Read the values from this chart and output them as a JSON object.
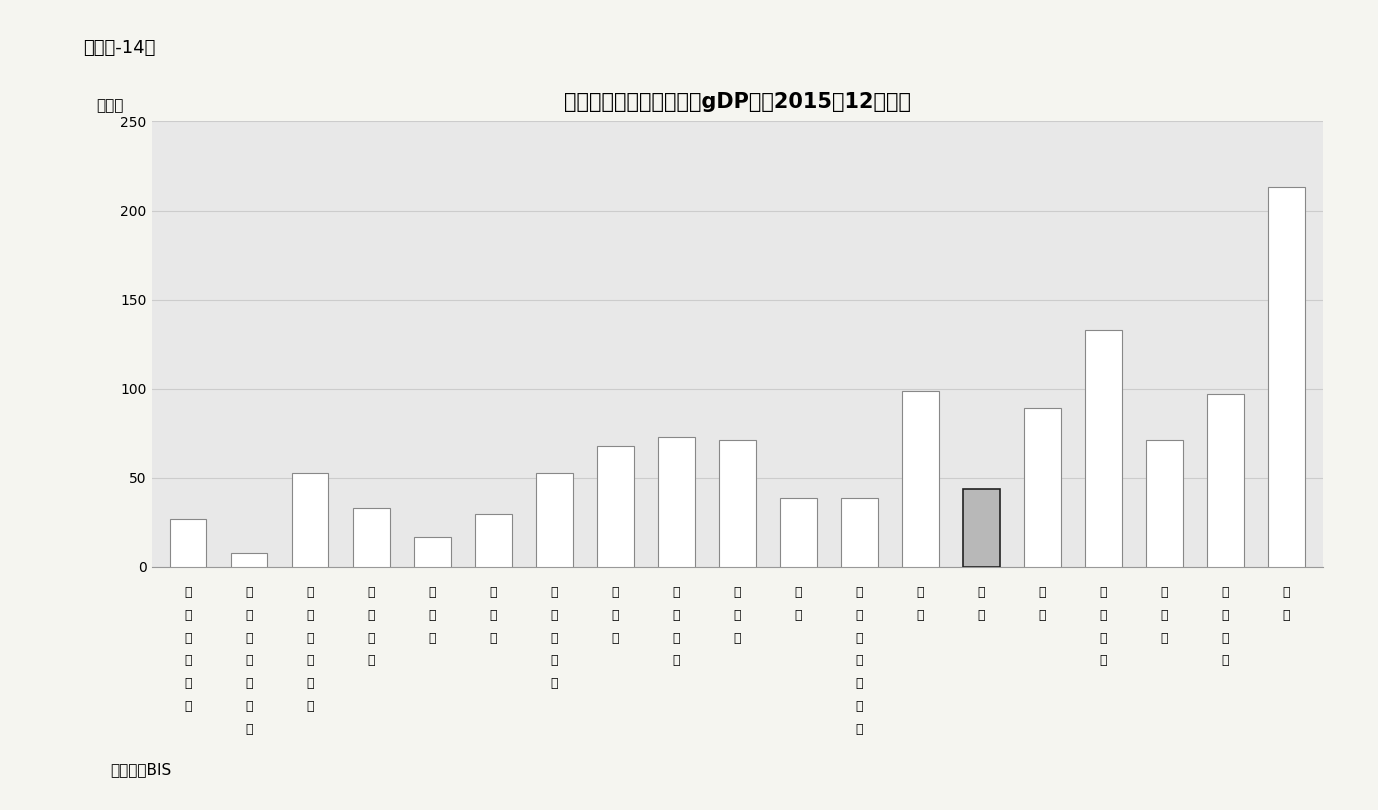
{
  "title": "一般政府の債務残高（対gDP比、2015年12月末）",
  "ylabel": "（％）",
  "caption": "（資料）BIS",
  "header_label": "（図表-14）",
  "tick_labels": [
    "イン\nド\nネ\nシ\nア",
    "サウ\nジ\nア\nラ\nビ\nア",
    "アル\nゼ\nン\nチ\nン",
    "メキ\nシ\nコ",
    "ロシ\nア",
    "トル\nコ",
    "南ア\nフ\nリ\nカ",
    "イン\nド",
    "ブラ\nジ\nル",
    "ドイ\nツ",
    "韓国",
    "オー\nス\nト\nラ\nリ\nア",
    "米国",
    "中国",
    "英国",
    "イタ\nリ\nア",
    "カナ\nダ",
    "フラ\nン\nス",
    "日本"
  ],
  "values": [
    27,
    8,
    53,
    33,
    17,
    30,
    53,
    68,
    73,
    71,
    39,
    39,
    99,
    44,
    89,
    133,
    71,
    97,
    213
  ],
  "bar_colors": [
    "#ffffff",
    "#ffffff",
    "#ffffff",
    "#ffffff",
    "#ffffff",
    "#ffffff",
    "#ffffff",
    "#ffffff",
    "#ffffff",
    "#ffffff",
    "#ffffff",
    "#ffffff",
    "#ffffff",
    "#b0b0b0",
    "#ffffff",
    "#ffffff",
    "#ffffff",
    "#ffffff",
    "#ffffff"
  ],
  "bar_edgecolors": [
    "#888888",
    "#888888",
    "#888888",
    "#888888",
    "#888888",
    "#888888",
    "#888888",
    "#888888",
    "#888888",
    "#888888",
    "#888888",
    "#888888",
    "#888888",
    "#333333",
    "#888888",
    "#888888",
    "#888888",
    "#888888",
    "#888888"
  ],
  "ylim": [
    0,
    250
  ],
  "yticks": [
    0,
    50,
    100,
    150,
    200,
    250
  ],
  "fig_bg_color": "#f5f5f0",
  "plot_bg_color": "#e8e8e8",
  "title_fontsize": 15,
  "tick_fontsize": 10,
  "label_fontsize": 11
}
